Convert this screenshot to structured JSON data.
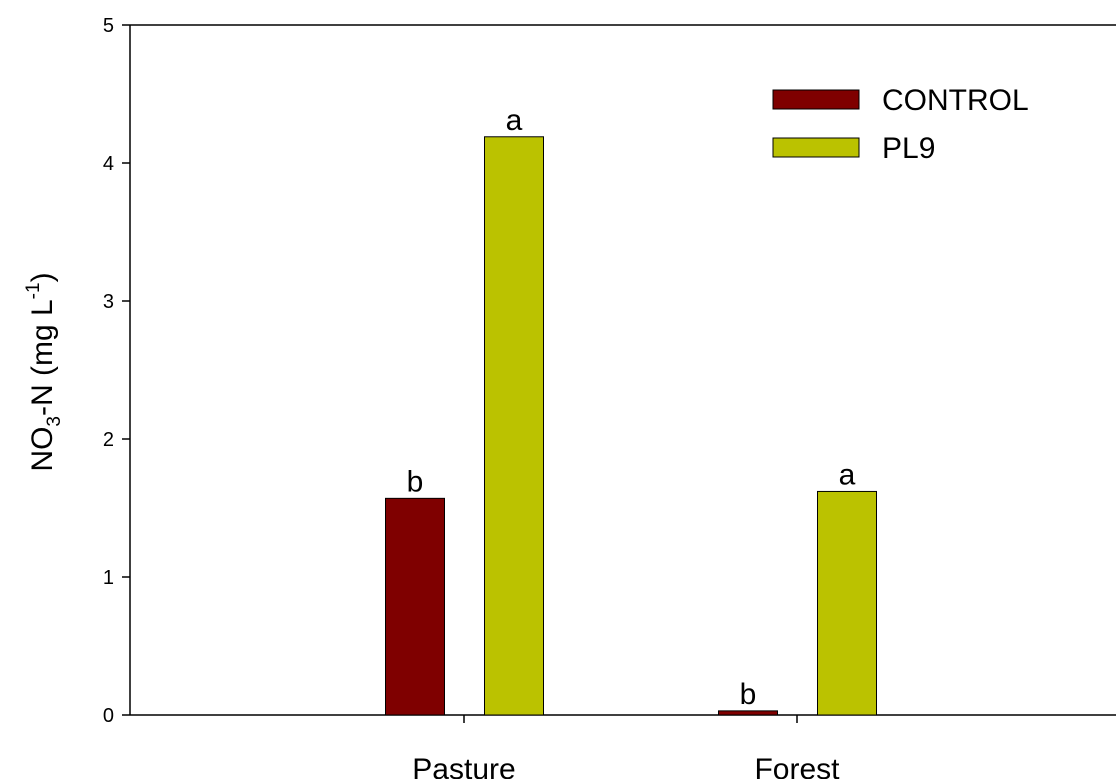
{
  "chart_data": {
    "type": "bar",
    "categories": [
      "Pasture",
      "Forest"
    ],
    "series": [
      {
        "name": "CONTROL",
        "color": "#7f0000",
        "values": [
          1.57,
          0.03
        ],
        "labels": [
          "b",
          "b"
        ]
      },
      {
        "name": "PL9",
        "color": "#bbc200",
        "values": [
          4.19,
          1.62
        ],
        "labels": [
          "a",
          "a"
        ]
      }
    ],
    "title": "",
    "xlabel": "",
    "ylabel_parts": {
      "main": "NO",
      "sub": "3",
      "mid": "-N (mg L",
      "sup": "-1",
      "end": ")"
    },
    "ylim": [
      0,
      5
    ],
    "yticks": [
      "0",
      "1",
      "2",
      "3",
      "4",
      "5"
    ],
    "legend_position": "top-right",
    "grid": false
  }
}
